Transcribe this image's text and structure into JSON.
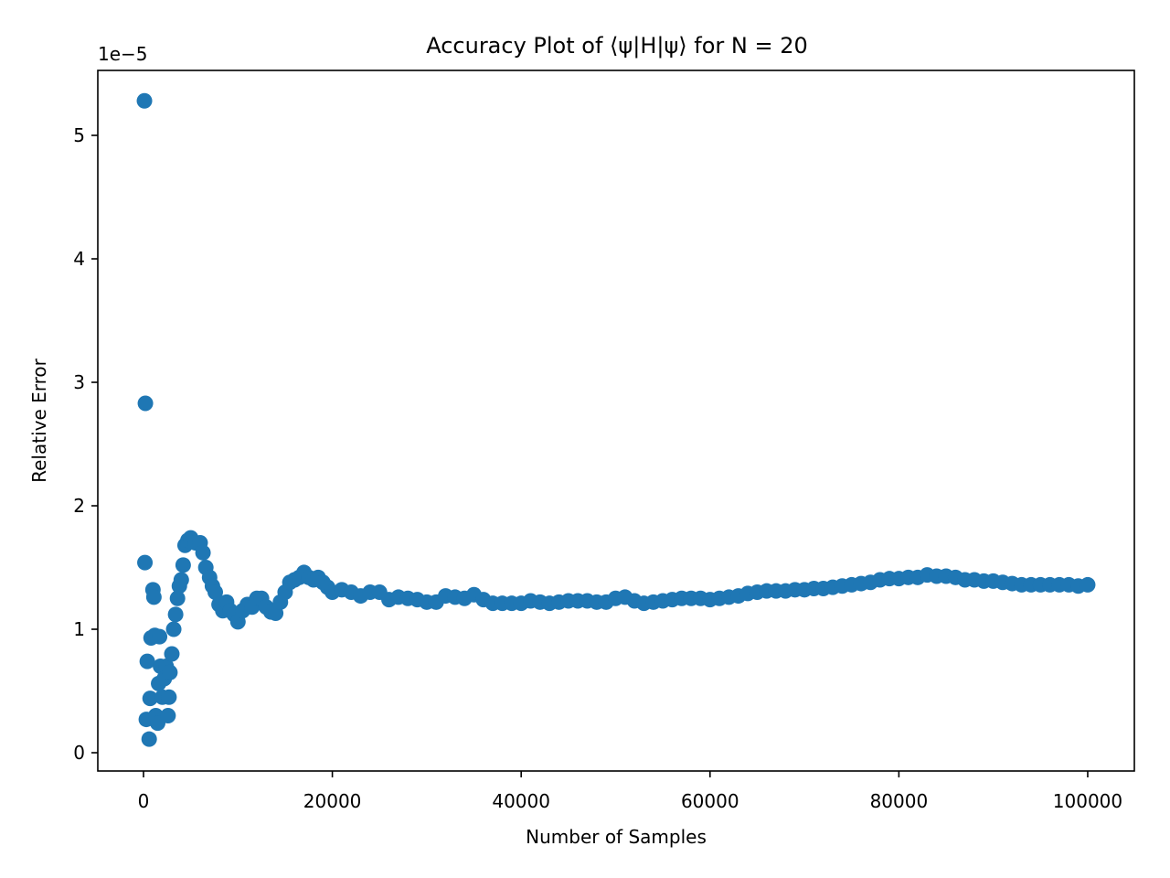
{
  "chart_data": {
    "type": "scatter",
    "title": "Accuracy Plot of ⟨ψ|H|ψ⟩ for N = 20",
    "x_label": "Number of Samples",
    "y_label": "Relative Error",
    "y_offset_label": "1e−5",
    "color": "#1f77b4",
    "xlim": [
      -4840,
      104940
    ],
    "ylim": [
      -0.148,
      5.526
    ],
    "xticks": [
      0,
      20000,
      40000,
      60000,
      80000,
      100000
    ],
    "yticks": [
      0,
      1,
      2,
      3,
      4,
      5
    ],
    "x": [
      100,
      200,
      150,
      400,
      300,
      600,
      700,
      800,
      1000,
      1100,
      1200,
      1300,
      1500,
      1600,
      1700,
      1800,
      2000,
      2200,
      2400,
      2600,
      2700,
      2800,
      3000,
      3200,
      3400,
      3600,
      3800,
      4000,
      4200,
      4400,
      4700,
      5000,
      5500,
      6000,
      6300,
      6600,
      7000,
      7300,
      7600,
      8000,
      8400,
      8800,
      9200,
      9600,
      10000,
      10500,
      11000,
      11500,
      12000,
      12500,
      13000,
      13500,
      14000,
      14500,
      15000,
      15500,
      16000,
      16500,
      17000,
      17500,
      18000,
      18500,
      19000,
      19500,
      20000,
      21000,
      22000,
      23000,
      24000,
      25000,
      26000,
      27000,
      28000,
      29000,
      30000,
      31000,
      32000,
      33000,
      34000,
      35000,
      36000,
      37000,
      38000,
      39000,
      40000,
      41000,
      42000,
      43000,
      44000,
      45000,
      46000,
      47000,
      48000,
      49000,
      50000,
      51000,
      52000,
      53000,
      54000,
      55000,
      56000,
      57000,
      58000,
      59000,
      60000,
      61000,
      62000,
      63000,
      64000,
      65000,
      66000,
      67000,
      68000,
      69000,
      70000,
      71000,
      72000,
      73000,
      74000,
      75000,
      76000,
      77000,
      78000,
      79000,
      80000,
      81000,
      82000,
      83000,
      84000,
      85000,
      86000,
      87000,
      88000,
      89000,
      90000,
      91000,
      92000,
      93000,
      94000,
      95000,
      96000,
      97000,
      98000,
      99000,
      100000
    ],
    "values": [
      5.28,
      2.83,
      1.54,
      0.74,
      0.27,
      0.11,
      0.44,
      0.93,
      1.32,
      1.26,
      0.95,
      0.3,
      0.24,
      0.56,
      0.94,
      0.7,
      0.45,
      0.6,
      0.7,
      0.3,
      0.45,
      0.65,
      0.8,
      1.0,
      1.12,
      1.25,
      1.35,
      1.4,
      1.52,
      1.68,
      1.72,
      1.74,
      1.7,
      1.7,
      1.62,
      1.5,
      1.42,
      1.35,
      1.3,
      1.2,
      1.15,
      1.22,
      1.15,
      1.12,
      1.06,
      1.15,
      1.2,
      1.18,
      1.25,
      1.25,
      1.18,
      1.14,
      1.13,
      1.22,
      1.3,
      1.38,
      1.4,
      1.42,
      1.46,
      1.42,
      1.4,
      1.42,
      1.38,
      1.34,
      1.3,
      1.32,
      1.3,
      1.27,
      1.3,
      1.3,
      1.24,
      1.26,
      1.25,
      1.24,
      1.22,
      1.22,
      1.27,
      1.26,
      1.25,
      1.28,
      1.24,
      1.21,
      1.21,
      1.21,
      1.21,
      1.23,
      1.22,
      1.21,
      1.22,
      1.23,
      1.23,
      1.23,
      1.22,
      1.22,
      1.25,
      1.26,
      1.23,
      1.21,
      1.22,
      1.23,
      1.24,
      1.25,
      1.25,
      1.25,
      1.24,
      1.25,
      1.26,
      1.27,
      1.29,
      1.3,
      1.31,
      1.31,
      1.31,
      1.32,
      1.32,
      1.33,
      1.33,
      1.34,
      1.35,
      1.36,
      1.37,
      1.38,
      1.4,
      1.41,
      1.41,
      1.42,
      1.42,
      1.44,
      1.43,
      1.43,
      1.42,
      1.4,
      1.4,
      1.39,
      1.39,
      1.38,
      1.37,
      1.36,
      1.36,
      1.36,
      1.36,
      1.36,
      1.36,
      1.35,
      1.36
    ]
  }
}
